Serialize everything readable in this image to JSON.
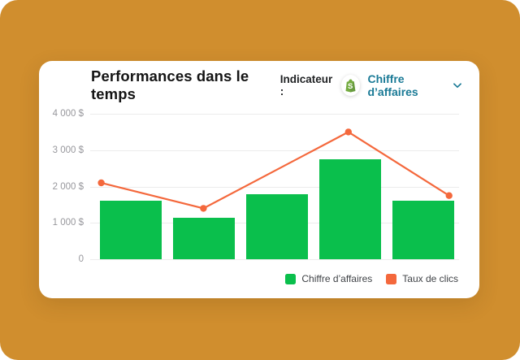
{
  "page": {
    "background_color": "#D08E2E"
  },
  "card": {
    "title": "Performances dans le temps",
    "indicator_label": "Indicateur :",
    "indicator_value": "Chiffre d’affaires",
    "indicator_icon": "shopify-icon",
    "dropdown_color": "#1A7A96"
  },
  "chart_data": {
    "type": "bar",
    "title": "Performances dans le temps",
    "xlabel": "",
    "ylabel": "",
    "ylim": [
      0,
      4000
    ],
    "grid": true,
    "y_tick_labels": [
      "4 000 $",
      "3 000 $",
      "2 000 $",
      "1 000 $",
      "0"
    ],
    "y_tick_values": [
      4000,
      3000,
      2000,
      1000,
      0
    ],
    "series": [
      {
        "name": "Chiffre d’affaires",
        "type": "bar",
        "color": "#0ABF4C",
        "values": [
          1600,
          1150,
          1800,
          2750,
          1600
        ]
      },
      {
        "name": "Taux de clics",
        "type": "line",
        "color": "#F4683C",
        "values": [
          2100,
          1400,
          3500,
          1750
        ],
        "x_frac": [
          0.03,
          0.307,
          0.7,
          0.973
        ]
      }
    ],
    "legend": [
      {
        "label": "Chiffre d’affaires",
        "color": "#0ABF4C"
      },
      {
        "label": "Taux de clics",
        "color": "#F4683C"
      }
    ],
    "legend_position": "bottom-right"
  }
}
